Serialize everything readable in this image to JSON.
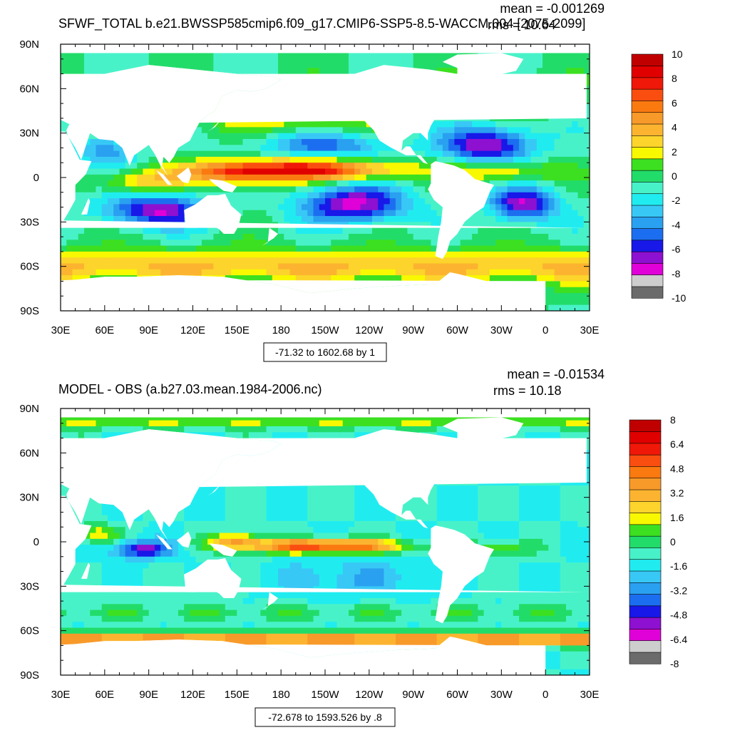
{
  "chart_data": [
    {
      "type": "heatmap",
      "title": "SFWF_TOTAL b.e21.BWSSP585cmip6.f09_g17.CMIP6-SSP5-8.5-WACCM.004 [2075-2099]",
      "stats": {
        "mean": "mean = -0.001269",
        "rms": "rms = 10.64"
      },
      "range_note": "-71.32 to 1602.68 by 1",
      "x_ticks": [
        "30E",
        "60E",
        "90E",
        "120E",
        "150E",
        "180",
        "150W",
        "120W",
        "90W",
        "60W",
        "30W",
        "0",
        "30E"
      ],
      "y_ticks": [
        "90N",
        "60N",
        "30N",
        "0",
        "30S",
        "60S",
        "90S"
      ],
      "colorbar": {
        "levels": [
          -10,
          -9,
          -8,
          -7,
          -6,
          -5,
          -4,
          -3,
          -2,
          -1,
          0,
          1,
          2,
          3,
          4,
          5,
          6,
          7,
          8,
          9,
          10
        ],
        "labels": [
          "10",
          "8",
          "6",
          "4",
          "2",
          "0",
          "-2",
          "-4",
          "-6",
          "-8",
          "-10"
        ]
      },
      "dominant_regions": [
        {
          "region": "Pacific ITCZ band near equator",
          "value_range": [
            6,
            10
          ]
        },
        {
          "region": "South Pacific subtropical gyre",
          "value_range": [
            -8,
            -5
          ]
        },
        {
          "region": "North Atlantic subtropics",
          "value_range": [
            -8,
            -5
          ]
        },
        {
          "region": "South Atlantic subtropics",
          "value_range": [
            -8,
            -5
          ]
        },
        {
          "region": "Southern Indian Ocean subtropics",
          "value_range": [
            -8,
            -5
          ]
        },
        {
          "region": "Southern Ocean storm track",
          "value_range": [
            2,
            6
          ]
        },
        {
          "region": "North Pacific storm track",
          "value_range": [
            2,
            5
          ]
        }
      ]
    },
    {
      "type": "heatmap",
      "title": "MODEL - OBS (a.b27.03.mean.1984-2006.nc)",
      "stats": {
        "mean": "mean = -0.01534",
        "rms": "rms = 10.18"
      },
      "range_note": "-72.678 to 1593.526 by .8",
      "x_ticks": [
        "30E",
        "60E",
        "90E",
        "120E",
        "150E",
        "180",
        "150W",
        "120W",
        "90W",
        "60W",
        "30W",
        "0",
        "30E"
      ],
      "y_ticks": [
        "90N",
        "60N",
        "30N",
        "0",
        "30S",
        "60S",
        "90S"
      ],
      "colorbar": {
        "levels": [
          -8,
          -7.2,
          -6.4,
          -5.6,
          -4.8,
          -4,
          -3.2,
          -2.4,
          -1.6,
          -0.8,
          0,
          0.8,
          1.6,
          2.4,
          3.2,
          4,
          4.8,
          5.6,
          6.4,
          7.2,
          8
        ],
        "labels": [
          "8",
          "6.4",
          "4.8",
          "3.2",
          "1.6",
          "0",
          "-1.6",
          "-3.2",
          "-4.8",
          "-6.4",
          "-8"
        ]
      },
      "dominant_regions": [
        {
          "region": "Pacific ITCZ band near equator",
          "value_range": [
            4,
            8
          ]
        },
        {
          "region": "Indian Ocean near Sumatra",
          "value_range": [
            -6.4,
            -4
          ]
        },
        {
          "region": "Open tropical/subtropical oceans",
          "value_range": [
            -2.4,
            0
          ]
        },
        {
          "region": "Antarctic margin band",
          "value_range": [
            3,
            8
          ]
        }
      ]
    }
  ],
  "palette": [
    "#6b6b6b",
    "#cdcdcd",
    "#e000d8",
    "#8e10d0",
    "#1818e8",
    "#1c6ef0",
    "#2aa0f0",
    "#38c8f6",
    "#20ecf0",
    "#48f2c8",
    "#22dc6a",
    "#3ce020",
    "#f8f800",
    "#fcd42c",
    "#fcb430",
    "#f89a2a",
    "#fa7a10",
    "#fa4e10",
    "#f01808",
    "#e00000",
    "#c00000"
  ],
  "colors": {
    "land": "#ffffff",
    "frame": "#000000"
  }
}
